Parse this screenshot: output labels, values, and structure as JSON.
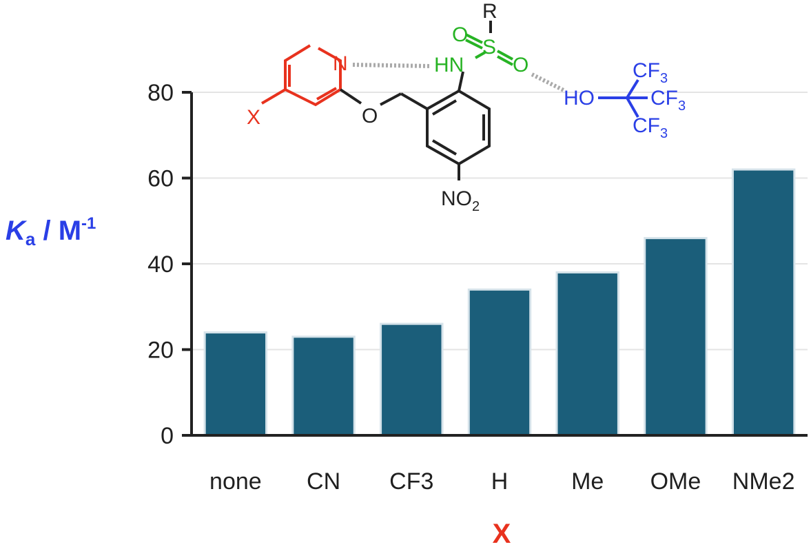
{
  "chart_data": {
    "type": "bar",
    "categories": [
      "none",
      "CN",
      "CF3",
      "H",
      "Me",
      "OMe",
      "NMe2"
    ],
    "values": [
      24,
      23,
      26,
      34,
      38,
      46,
      62
    ],
    "ylim": [
      0,
      80
    ],
    "yticks": [
      0,
      20,
      40,
      60,
      80
    ],
    "xlabel": "X",
    "ylabel": {
      "italic": "K",
      "sub": "a",
      "rest": " / M",
      "sup": "-1"
    },
    "grid": true,
    "bar_color": "#1b5e7a"
  },
  "structure": {
    "pyridine_color": "#e8321e",
    "sulfonamide_color": "#27b324",
    "hfip_color": "#2a3fe6",
    "labels": {
      "pyridine_n": "N",
      "substituent_x": "X",
      "ether_o": "O",
      "nh": "HN",
      "sulfonyl_o1": "O",
      "sulfonyl_s": "S",
      "sulfonyl_o2": "O",
      "r_group": "R",
      "nitro": "NO",
      "nitro_sub": "2",
      "hfip_ho": "HO",
      "cf3_a": "CF",
      "cf3_b": "CF",
      "cf3_c": "CF",
      "cf3_sub": "3"
    }
  }
}
